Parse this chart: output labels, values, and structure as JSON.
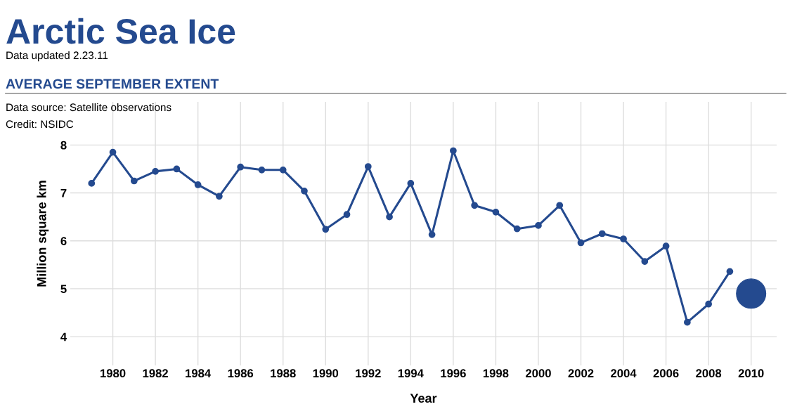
{
  "chart_data": {
    "type": "line",
    "title": "Arctic Sea Ice",
    "subtitle": "Data updated 2.23.11",
    "annotations": [
      "AVERAGE SEPTEMBER EXTENT",
      "Data source: Satellite observations",
      "Credit: NSIDC"
    ],
    "xlabel": "Year",
    "ylabel": "Million square km",
    "series": [
      {
        "color": "#244a8f",
        "marker": "circle",
        "x": [
          1979,
          1980,
          1981,
          1982,
          1983,
          1984,
          1985,
          1986,
          1987,
          1988,
          1989,
          1990,
          1991,
          1992,
          1993,
          1994,
          1995,
          1996,
          1997,
          1998,
          1999,
          2000,
          2001,
          2002,
          2003,
          2004,
          2005,
          2006,
          2007,
          2008,
          2009
        ],
        "values": [
          7.2,
          7.85,
          7.25,
          7.45,
          7.5,
          7.17,
          6.93,
          7.54,
          7.48,
          7.48,
          7.04,
          6.24,
          6.55,
          7.55,
          6.5,
          7.2,
          6.13,
          7.88,
          6.74,
          6.6,
          6.25,
          6.32,
          6.74,
          5.96,
          6.15,
          6.04,
          5.57,
          5.89,
          4.3,
          4.68,
          5.36
        ]
      },
      {
        "type": "scatter",
        "color": "#244a8f",
        "x": [
          2010
        ],
        "values": [
          4.9
        ]
      }
    ],
    "xlim": [
      1978,
      2011.2
    ],
    "xticks": [
      1980,
      1982,
      1984,
      1986,
      1988,
      1990,
      1992,
      1994,
      1996,
      1998,
      2000,
      2002,
      2004,
      2006,
      2008,
      2010
    ],
    "ylim": [
      3.4,
      8.9
    ],
    "yticks": [
      4,
      5,
      6,
      7,
      8
    ],
    "grid": true,
    "legend": false
  }
}
